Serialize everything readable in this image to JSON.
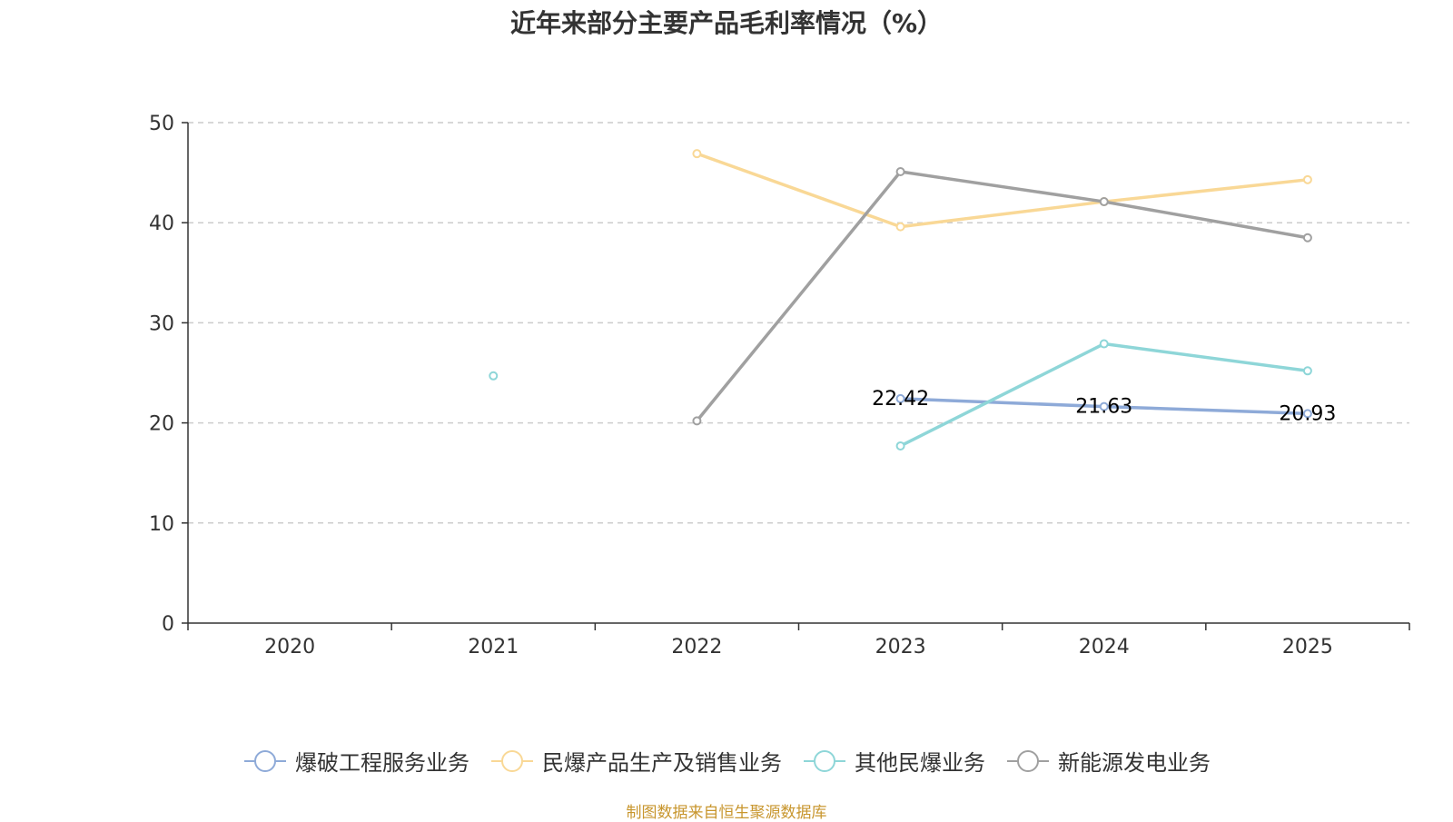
{
  "chart_data": {
    "type": "line",
    "title": "近年来部分主要产品毛利率情况（%）",
    "categories": [
      "2020",
      "2021",
      "2022",
      "2023",
      "2024",
      "2025"
    ],
    "ylim": [
      0,
      50
    ],
    "yticks": [
      0,
      10,
      20,
      30,
      40,
      50
    ],
    "grid": true,
    "legend_position": "bottom",
    "series": [
      {
        "name": "爆破工程服务业务",
        "color": "#8eaad8",
        "values": [
          null,
          null,
          null,
          22.42,
          21.63,
          20.93
        ],
        "show_labels": true
      },
      {
        "name": "民爆产品生产及销售业务",
        "color": "#f9d896",
        "values": [
          null,
          null,
          46.9,
          39.6,
          42.1,
          44.3
        ],
        "show_labels": false
      },
      {
        "name": "其他民爆业务",
        "color": "#8ed6d8",
        "values": [
          null,
          24.7,
          null,
          17.7,
          27.9,
          25.2
        ],
        "show_labels": false
      },
      {
        "name": "新能源发电业务",
        "color": "#a0a0a0",
        "values": [
          null,
          null,
          20.2,
          45.1,
          42.1,
          38.5
        ],
        "show_labels": false
      }
    ]
  },
  "footer": {
    "text": "制图数据来自恒生聚源数据库",
    "color": "#c8962e"
  }
}
